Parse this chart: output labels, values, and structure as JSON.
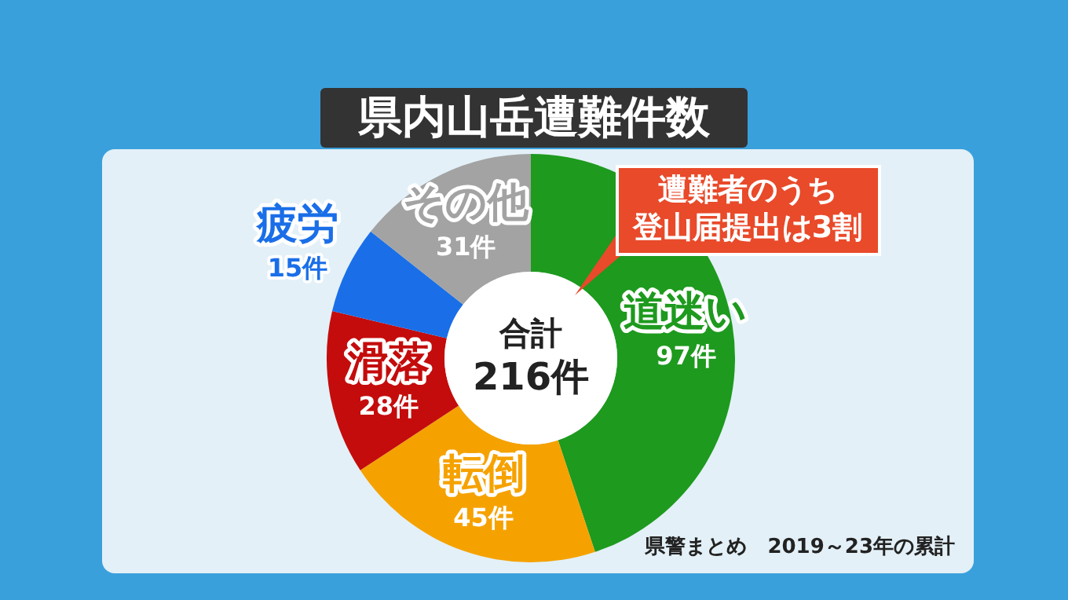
{
  "chart_data": {
    "type": "donut",
    "title": "県内山岳遭難件数",
    "categories": [
      "道迷い",
      "転倒",
      "滑落",
      "疲労",
      "その他"
    ],
    "values": [
      97,
      45,
      28,
      15,
      31
    ],
    "colors": [
      "#1e9a1e",
      "#f5a200",
      "#c40c0c",
      "#1a6fe8",
      "#a3a3a3"
    ],
    "value_labels": [
      "97件",
      "45件",
      "28件",
      "15件",
      "31件"
    ],
    "annotations": [
      "合計",
      "216件",
      "遭難者のうち",
      "登山届提出は3割",
      "県警まとめ　2019～23年の累計"
    ],
    "legend": false
  }
}
